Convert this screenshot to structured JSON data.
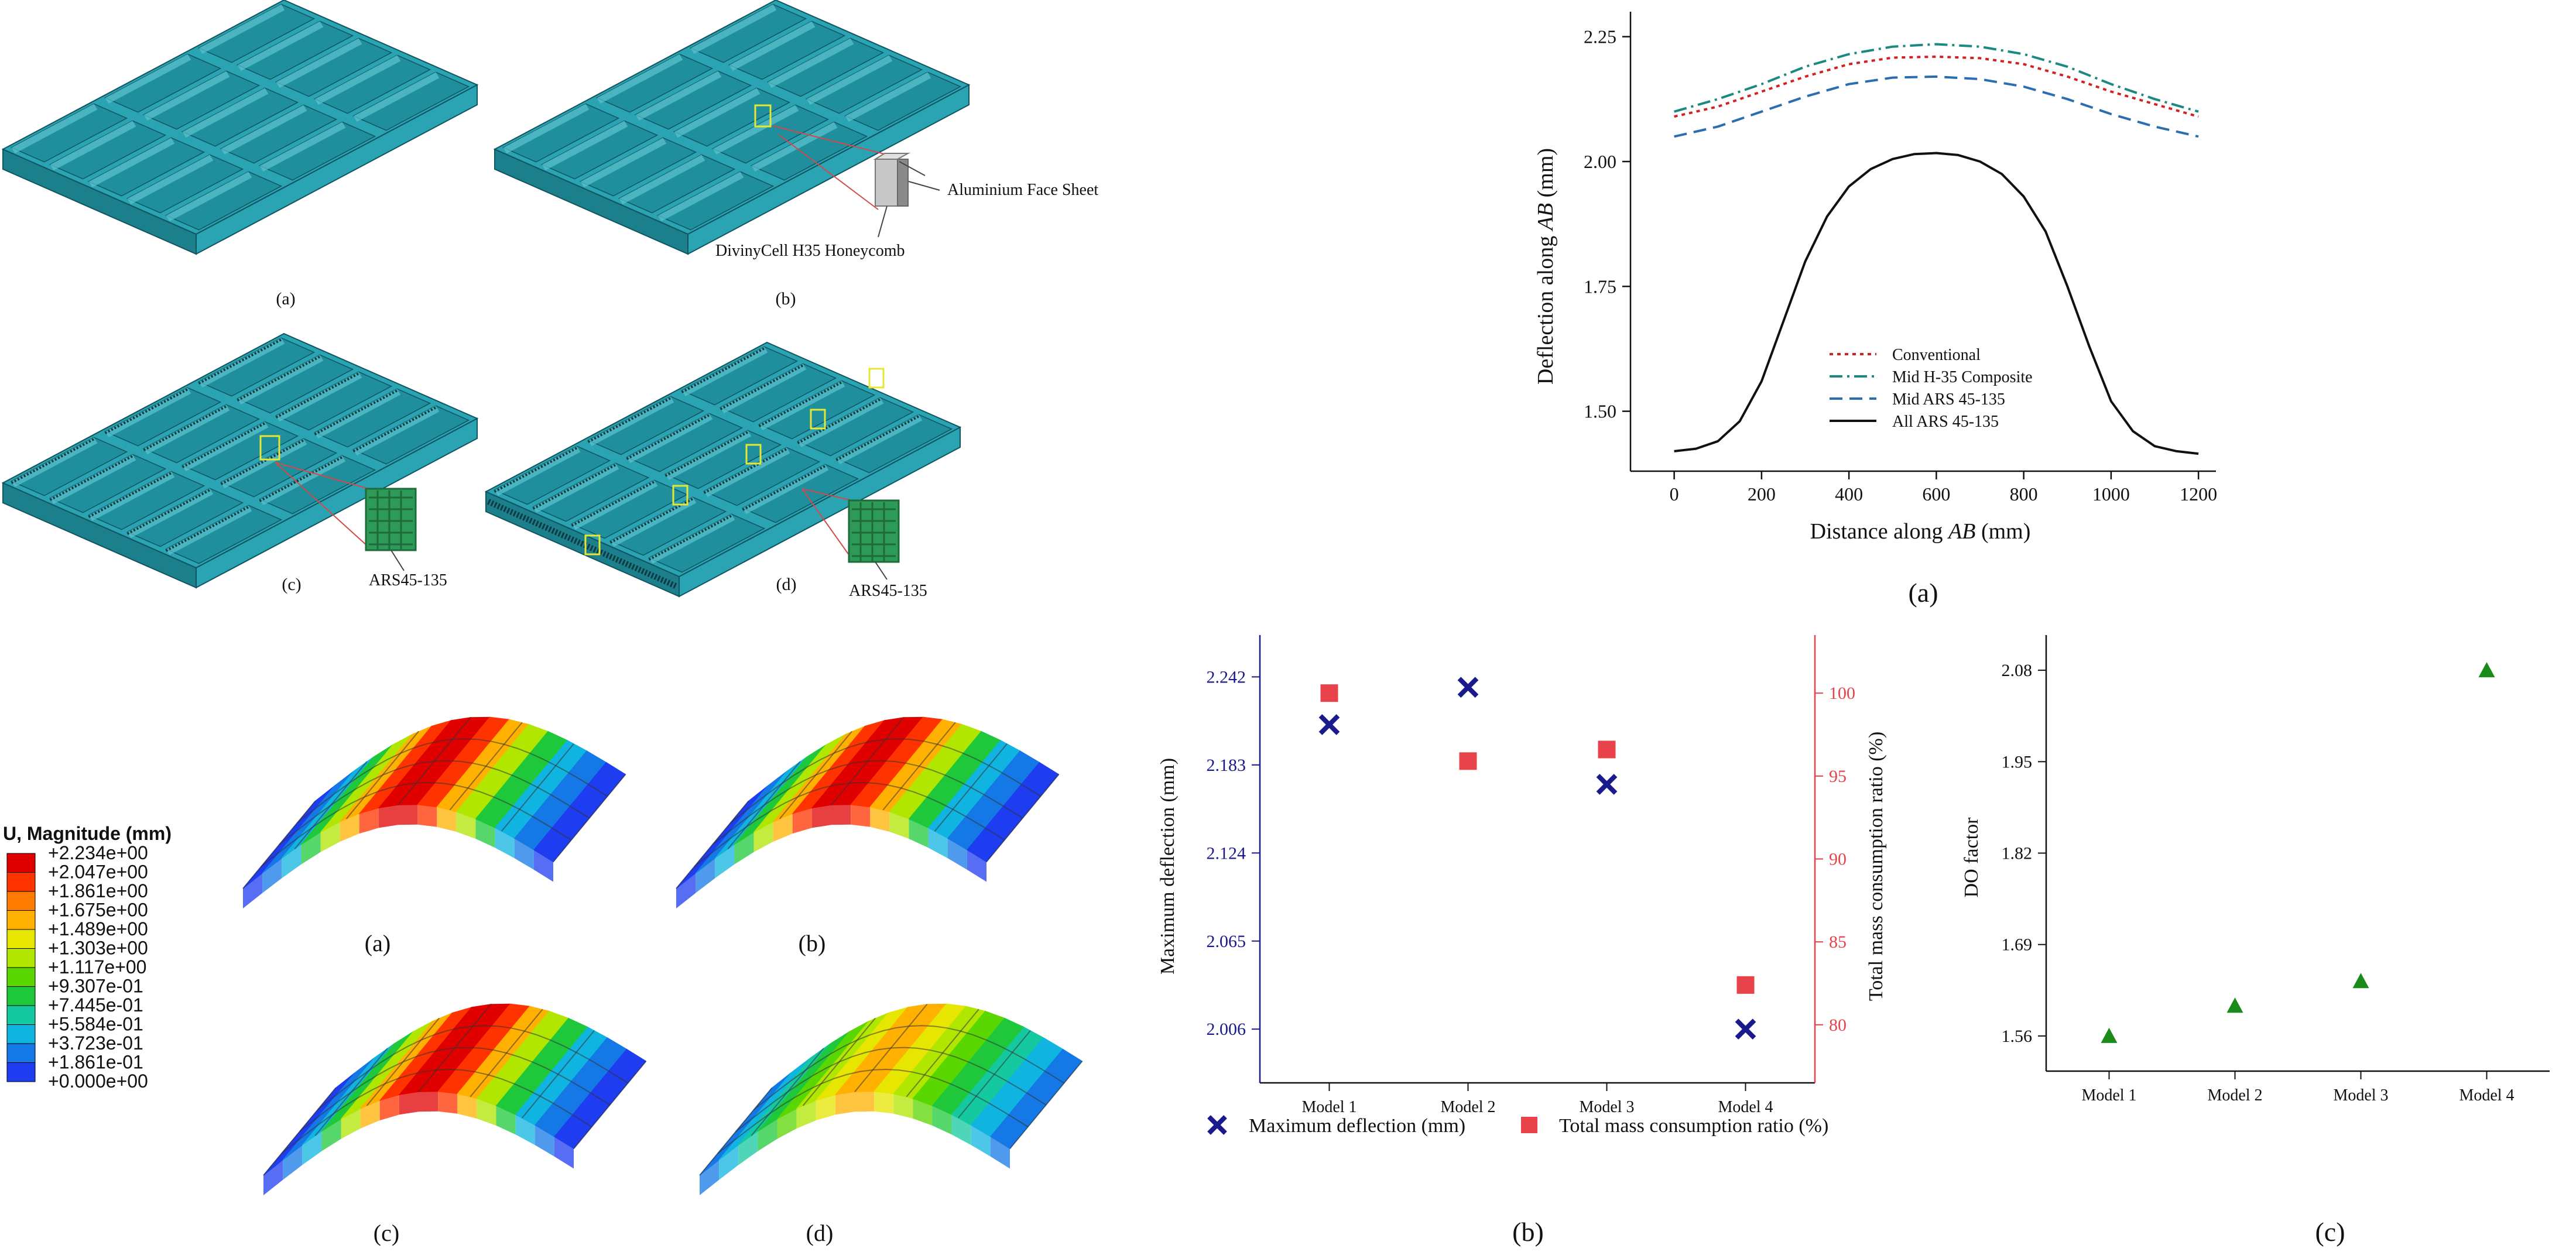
{
  "colors": {
    "plate": "#2aa3b3",
    "plate_dark": "#1c7f8c",
    "plate_light": "#5cc3cf",
    "navy": "#1a1a8c",
    "red": "#e8434b",
    "green": "#1a8a1a",
    "conventional": "#d42020",
    "mid_h35": "#1a8a80",
    "mid_ars": "#2a6db0",
    "all_ars": "#111111"
  },
  "models_figure": {
    "panels": [
      {
        "label": "(a)"
      },
      {
        "label": "(b)",
        "callouts": [
          "Aluminium Face Sheet",
          "DivinyCell H35 Honeycomb"
        ]
      },
      {
        "label": "(c)",
        "callouts": [
          "ARS45-135"
        ]
      },
      {
        "label": "(d)",
        "callouts": [
          "ARS45-135"
        ]
      }
    ]
  },
  "contour_figure": {
    "legend_title": "U, Magnitude (mm)",
    "legend_values": [
      "+2.234e+00",
      "+2.047e+00",
      "+1.861e+00",
      "+1.675e+00",
      "+1.489e+00",
      "+1.303e+00",
      "+1.117e+00",
      "+9.307e-01",
      "+7.445e-01",
      "+5.584e-01",
      "+3.723e-01",
      "+1.861e-01",
      "+0.000e+00"
    ],
    "legend_colors": [
      "#e00000",
      "#ff3300",
      "#ff7a00",
      "#ffb000",
      "#e6e600",
      "#b0e600",
      "#5ad600",
      "#1ec83a",
      "#14c8a0",
      "#10b4e0",
      "#1478e6",
      "#1e3cf0"
    ],
    "panels": [
      {
        "label": "(a)"
      },
      {
        "label": "(b)"
      },
      {
        "label": "(c)"
      },
      {
        "label": "(d)"
      }
    ]
  },
  "chart_data": [
    {
      "type": "line",
      "panel_label": "(a)",
      "xlabel_prefix": "Distance along ",
      "xlabel_var": "AB",
      "xlabel_suffix": " (mm)",
      "ylabel_prefix": "Deflection along ",
      "ylabel_var": "AB",
      "ylabel_suffix": " (mm)",
      "xlim": [
        -100,
        1240
      ],
      "ylim": [
        1.38,
        2.3
      ],
      "x_ticks": [
        0,
        200,
        400,
        600,
        800,
        1000,
        1200
      ],
      "y_ticks": [
        "1.50",
        "1.75",
        "2.00",
        "2.25"
      ],
      "legend_position": "bottom-center",
      "series": [
        {
          "name": "Conventional",
          "style": "dotted",
          "color": "#d42020",
          "x": [
            0,
            100,
            200,
            300,
            400,
            500,
            600,
            700,
            800,
            900,
            1000,
            1100,
            1200
          ],
          "y": [
            2.09,
            2.11,
            2.14,
            2.17,
            2.195,
            2.208,
            2.21,
            2.207,
            2.195,
            2.17,
            2.14,
            2.115,
            2.09
          ]
        },
        {
          "name": "Mid H-35 Composite",
          "style": "dashdot",
          "color": "#1a8a80",
          "x": [
            0,
            100,
            200,
            300,
            400,
            500,
            600,
            700,
            800,
            900,
            1000,
            1100,
            1200
          ],
          "y": [
            2.1,
            2.125,
            2.155,
            2.19,
            2.215,
            2.23,
            2.235,
            2.23,
            2.215,
            2.19,
            2.155,
            2.125,
            2.1
          ]
        },
        {
          "name": "Mid ARS 45-135",
          "style": "dashed",
          "color": "#2a6db0",
          "x": [
            0,
            100,
            200,
            300,
            400,
            500,
            600,
            700,
            800,
            900,
            1000,
            1100,
            1200
          ],
          "y": [
            2.05,
            2.07,
            2.1,
            2.13,
            2.155,
            2.168,
            2.17,
            2.165,
            2.15,
            2.125,
            2.095,
            2.07,
            2.05
          ],
          "note": ""
        },
        {
          "name": "All ARS 45-135",
          "style": "solid",
          "color": "#111111",
          "x": [
            0,
            50,
            100,
            150,
            200,
            250,
            300,
            350,
            400,
            450,
            500,
            550,
            600,
            650,
            700,
            750,
            800,
            850,
            900,
            950,
            1000,
            1050,
            1100,
            1150,
            1200
          ],
          "y": [
            1.42,
            1.425,
            1.44,
            1.48,
            1.56,
            1.68,
            1.8,
            1.89,
            1.95,
            1.985,
            2.005,
            2.015,
            2.017,
            2.013,
            2.0,
            1.975,
            1.93,
            1.86,
            1.75,
            1.63,
            1.52,
            1.46,
            1.43,
            1.42,
            1.415
          ]
        }
      ]
    },
    {
      "type": "scatter",
      "panel_label": "(b)",
      "categories": [
        "Model 1",
        "Model 2",
        "Model 3",
        "Model 4"
      ],
      "ylabel": "Maximum deflection (mm)",
      "y2label": "Total mass consumption ratio (%)",
      "ylim": [
        1.97,
        2.27
      ],
      "y_ticks": [
        "2.006",
        "2.065",
        "2.124",
        "2.183",
        "2.242"
      ],
      "y2lim": [
        76.5,
        103.5
      ],
      "y2_ticks": [
        "80",
        "85",
        "90",
        "95",
        "100"
      ],
      "legend_position": "bottom",
      "series": [
        {
          "name": "Maximum deflection (mm)",
          "marker": "x",
          "color": "#1a1a8c",
          "axis": "left",
          "values": [
            2.21,
            2.235,
            2.17,
            2.006
          ]
        },
        {
          "name": "Total mass consumption ratio (%)",
          "marker": "square",
          "color": "#e8434b",
          "axis": "right",
          "values": [
            100,
            95.9,
            96.6,
            82.4
          ]
        }
      ]
    },
    {
      "type": "scatter",
      "panel_label": "(c)",
      "categories": [
        "Model 1",
        "Model 2",
        "Model 3",
        "Model 4"
      ],
      "ylabel": "DO factor",
      "ylim": [
        1.51,
        2.13
      ],
      "y_ticks": [
        "1.56",
        "1.69",
        "1.82",
        "1.95",
        "2.08"
      ],
      "series": [
        {
          "name": "",
          "marker": "triangle",
          "color": "#1a8a1a",
          "values": [
            1.56,
            1.603,
            1.638,
            2.08
          ]
        }
      ]
    }
  ]
}
